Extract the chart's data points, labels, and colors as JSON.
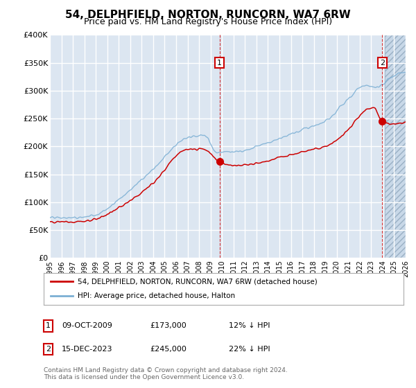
{
  "title": "54, DELPHFIELD, NORTON, RUNCORN, WA7 6RW",
  "subtitle": "Price paid vs. HM Land Registry's House Price Index (HPI)",
  "plot_bg_color": "#dce6f1",
  "grid_color": "#ffffff",
  "ylim": [
    0,
    400000
  ],
  "yticks": [
    0,
    50000,
    100000,
    150000,
    200000,
    250000,
    300000,
    350000,
    400000
  ],
  "ytick_labels": [
    "£0",
    "£50K",
    "£100K",
    "£150K",
    "£200K",
    "£250K",
    "£300K",
    "£350K",
    "£400K"
  ],
  "x_start_year": 1995,
  "x_end_year": 2026,
  "red_line_color": "#cc0000",
  "blue_line_color": "#7bafd4",
  "marker1_date": 2009.78,
  "marker1_price": 173000,
  "marker1_label": "09-OCT-2009",
  "marker1_pct": "12% ↓ HPI",
  "marker2_date": 2023.96,
  "marker2_price": 245000,
  "marker2_label": "15-DEC-2023",
  "marker2_pct": "22% ↓ HPI",
  "legend_line1": "54, DELPHFIELD, NORTON, RUNCORN, WA7 6RW (detached house)",
  "legend_line2": "HPI: Average price, detached house, Halton",
  "footer1": "Contains HM Land Registry data © Crown copyright and database right 2024.",
  "footer2": "This data is licensed under the Open Government Licence v3.0.",
  "hpi_keypoints_x": [
    1995,
    1997,
    1999,
    2001,
    2004,
    2007,
    2008.5,
    2009.5,
    2011,
    2013,
    2015,
    2017,
    2019,
    2021,
    2022.5,
    2023.5,
    2024.5,
    2026
  ],
  "hpi_keypoints_y": [
    72000,
    72000,
    78000,
    105000,
    160000,
    215000,
    220000,
    190000,
    190000,
    200000,
    215000,
    230000,
    245000,
    285000,
    310000,
    305000,
    320000,
    335000
  ],
  "red_keypoints_x": [
    1995,
    1997,
    1999,
    2001,
    2004,
    2007,
    2008.3,
    2009.78,
    2011,
    2013,
    2015,
    2017,
    2019,
    2021,
    2022.5,
    2023.2,
    2023.96,
    2024.5,
    2026
  ],
  "red_keypoints_y": [
    65000,
    65000,
    70000,
    90000,
    135000,
    195000,
    195000,
    173000,
    165000,
    170000,
    180000,
    190000,
    200000,
    230000,
    265000,
    270000,
    245000,
    240000,
    245000
  ]
}
